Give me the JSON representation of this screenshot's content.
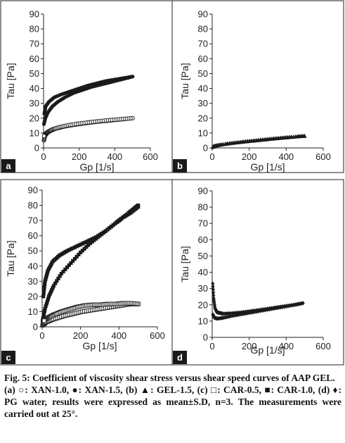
{
  "chart_data": [
    {
      "panel": "a",
      "type": "scatter",
      "xlabel": "Gp [1/s]",
      "ylabel": "Tau [Pa]",
      "xlim": [
        0,
        600
      ],
      "ylim": [
        0,
        90
      ],
      "xticks": [
        "0",
        "200",
        "400",
        "600"
      ],
      "yticks": [
        "0",
        "10",
        "20",
        "30",
        "40",
        "50",
        "60",
        "70",
        "80",
        "90"
      ],
      "series": [
        {
          "marker": "filled-circle",
          "name": "XAN-1.5",
          "up": [
            [
              2,
              16
            ],
            [
              10,
              20
            ],
            [
              25,
              24
            ],
            [
              50,
              28
            ],
            [
              80,
              31
            ],
            [
              120,
              34
            ],
            [
              170,
              37
            ],
            [
              220,
              39
            ],
            [
              270,
              41
            ],
            [
              320,
              42.5
            ],
            [
              370,
              44
            ],
            [
              420,
              45.5
            ],
            [
              470,
              47
            ],
            [
              500,
              48
            ]
          ],
          "down": [
            [
              500,
              48
            ],
            [
              450,
              47
            ],
            [
              400,
              46
            ],
            [
              350,
              45
            ],
            [
              300,
              43.5
            ],
            [
              250,
              42
            ],
            [
              200,
              40
            ],
            [
              150,
              38
            ],
            [
              100,
              36
            ],
            [
              60,
              34
            ],
            [
              30,
              31
            ],
            [
              12,
              28
            ],
            [
              4,
              23
            ]
          ]
        },
        {
          "marker": "open-circle",
          "name": "XAN-1.0",
          "up": [
            [
              2,
              5
            ],
            [
              8,
              8
            ],
            [
              20,
              10
            ],
            [
              40,
              11.5
            ],
            [
              70,
              13
            ],
            [
              110,
              14.2
            ],
            [
              160,
              15.3
            ],
            [
              210,
              16.2
            ],
            [
              260,
              17
            ],
            [
              320,
              17.8
            ],
            [
              380,
              18.5
            ],
            [
              440,
              19.2
            ],
            [
              500,
              20
            ]
          ],
          "down": [
            [
              500,
              20
            ],
            [
              440,
              19.4
            ],
            [
              380,
              18.8
            ],
            [
              320,
              18.1
            ],
            [
              260,
              17.3
            ],
            [
              200,
              16.4
            ],
            [
              140,
              15.3
            ],
            [
              90,
              14
            ],
            [
              50,
              12.5
            ],
            [
              25,
              11
            ],
            [
              10,
              9.5
            ],
            [
              3,
              8
            ]
          ]
        }
      ]
    },
    {
      "panel": "b",
      "type": "scatter",
      "xlabel": "Gp [1/s]",
      "ylabel": "Tau [Pa]",
      "xlim": [
        0,
        600
      ],
      "ylim": [
        0,
        90
      ],
      "xticks": [
        "0",
        "200",
        "400",
        "600"
      ],
      "yticks": [
        "0",
        "10",
        "20",
        "30",
        "40",
        "50",
        "60",
        "70",
        "80",
        "90"
      ],
      "series": [
        {
          "marker": "filled-triangle",
          "name": "GEL-1.5",
          "up": [
            [
              2,
              0.5
            ],
            [
              20,
              1.5
            ],
            [
              60,
              2.5
            ],
            [
              120,
              3.5
            ],
            [
              180,
              4.3
            ],
            [
              240,
              5
            ],
            [
              300,
              5.8
            ],
            [
              360,
              6.5
            ],
            [
              420,
              7.2
            ],
            [
              470,
              7.8
            ],
            [
              500,
              8
            ]
          ],
          "down": [
            [
              500,
              8
            ],
            [
              440,
              7.5
            ],
            [
              380,
              6.9
            ],
            [
              320,
              6.2
            ],
            [
              260,
              5.4
            ],
            [
              200,
              4.6
            ],
            [
              140,
              3.7
            ],
            [
              80,
              2.8
            ],
            [
              30,
              1.8
            ],
            [
              5,
              1
            ]
          ]
        }
      ]
    },
    {
      "panel": "c",
      "type": "scatter",
      "xlabel": "Gp [1/s]",
      "ylabel": "Tau [Pa]",
      "xlim": [
        0,
        600
      ],
      "ylim": [
        0,
        90
      ],
      "xticks": [
        "0",
        "200",
        "400",
        "600"
      ],
      "yticks": [
        "0",
        "10",
        "20",
        "30",
        "40",
        "50",
        "60",
        "70",
        "80",
        "90"
      ],
      "series": [
        {
          "marker": "filled-square",
          "name": "CAR-1.0",
          "up": [
            [
              2,
              4
            ],
            [
              15,
              12
            ],
            [
              35,
              20
            ],
            [
              60,
              27
            ],
            [
              100,
              35
            ],
            [
              150,
              42
            ],
            [
              200,
              49
            ],
            [
              250,
              55
            ],
            [
              300,
              60
            ],
            [
              350,
              65
            ],
            [
              400,
              70
            ],
            [
              450,
              75
            ],
            [
              480,
              78
            ],
            [
              500,
              80
            ]
          ],
          "down": [
            [
              500,
              79
            ],
            [
              460,
              75
            ],
            [
              420,
              72
            ],
            [
              380,
              68
            ],
            [
              330,
              63
            ],
            [
              280,
              59
            ],
            [
              230,
              56
            ],
            [
              180,
              53
            ],
            [
              130,
              50
            ],
            [
              90,
              47
            ],
            [
              55,
              43
            ],
            [
              30,
              37
            ],
            [
              15,
              30
            ],
            [
              6,
              20
            ]
          ]
        },
        {
          "marker": "open-square",
          "name": "CAR-0.5",
          "up": [
            [
              2,
              1
            ],
            [
              20,
              3
            ],
            [
              60,
              5
            ],
            [
              110,
              7
            ],
            [
              160,
              8.5
            ],
            [
              210,
              10
            ],
            [
              260,
              11
            ],
            [
              310,
              12
            ],
            [
              360,
              13
            ],
            [
              410,
              14
            ],
            [
              460,
              15
            ],
            [
              500,
              15
            ]
          ],
          "down": [
            [
              500,
              15
            ],
            [
              460,
              15.5
            ],
            [
              420,
              15.5
            ],
            [
              380,
              15
            ],
            [
              340,
              15
            ],
            [
              300,
              14.5
            ],
            [
              260,
              14.5
            ],
            [
              220,
              14
            ],
            [
              180,
              13
            ],
            [
              140,
              11.5
            ],
            [
              100,
              10
            ],
            [
              60,
              8
            ],
            [
              30,
              6
            ],
            [
              10,
              4
            ]
          ]
        }
      ]
    },
    {
      "panel": "d",
      "type": "scatter",
      "xlabel": "Gp [1/s]",
      "ylabel": "Tau [Pa]",
      "xlim": [
        0,
        600
      ],
      "ylim": [
        0,
        90
      ],
      "xticks": [
        "0",
        "200",
        "400",
        "600"
      ],
      "yticks": [
        "0",
        "10",
        "20",
        "30",
        "40",
        "50",
        "60",
        "70",
        "80",
        "90"
      ],
      "series": [
        {
          "marker": "filled-diamond",
          "name": "PG water",
          "up": [
            [
              3,
              33
            ],
            [
              8,
              24
            ],
            [
              15,
              18
            ],
            [
              25,
              15.5
            ],
            [
              40,
              15
            ],
            [
              60,
              14.5
            ],
            [
              100,
              14.8
            ],
            [
              150,
              15.3
            ],
            [
              200,
              16
            ],
            [
              250,
              16.8
            ],
            [
              300,
              17.6
            ],
            [
              350,
              18.5
            ],
            [
              400,
              19.3
            ],
            [
              450,
              20.2
            ],
            [
              490,
              21
            ]
          ],
          "down": [
            [
              490,
              21
            ],
            [
              450,
              20
            ],
            [
              400,
              19
            ],
            [
              350,
              18
            ],
            [
              300,
              17
            ],
            [
              250,
              16
            ],
            [
              200,
              15
            ],
            [
              150,
              14
            ],
            [
              100,
              13
            ],
            [
              60,
              12
            ],
            [
              30,
              11.5
            ],
            [
              12,
              12
            ],
            [
              4,
              14
            ]
          ]
        }
      ]
    }
  ],
  "caption": {
    "title": "Fig. 5: Coefficient of viscosity shear stress versus shear speed curves of AAP GEL.",
    "legend": "(a) ○: XAN-1.0, ●: XAN-1.5, (b) ▲: GEL-1.5, (c) □: CAR-0.5, ■: CAR-1.0, (d) ♦: PG water, results were expressed as mean±S.D, n=3. The measurements were carried out at 25°."
  },
  "colors": {
    "marker": "#1a1a1a",
    "axis": "#222222",
    "panel_tag": "#1a1a1a"
  }
}
